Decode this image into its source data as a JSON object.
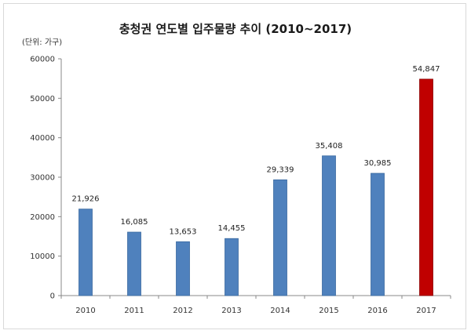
{
  "chart_data": {
    "type": "bar",
    "title": "충청권 연도별 입주물량 추이 (2010~2017)",
    "unit_label": "(단위: 가구)",
    "categories": [
      "2010",
      "2011",
      "2012",
      "2013",
      "2014",
      "2015",
      "2016",
      "2017"
    ],
    "values": [
      21926,
      16085,
      13653,
      14455,
      29339,
      35408,
      30985,
      54847
    ],
    "data_labels": [
      "21,926",
      "16,085",
      "13,653",
      "14,455",
      "29,339",
      "35,408",
      "30,985",
      "54,847"
    ],
    "y_ticks": [
      "0",
      "10000",
      "20000",
      "30000",
      "40000",
      "50000",
      "60000"
    ],
    "ylim": [
      0,
      60000
    ],
    "grid": false,
    "legend": "none",
    "colors": {
      "bar": "#4f81bd",
      "bar_border": "#3a6aa0",
      "highlight": "#c00000",
      "highlight_border": "#8b0000",
      "highlight_index": 7
    }
  }
}
